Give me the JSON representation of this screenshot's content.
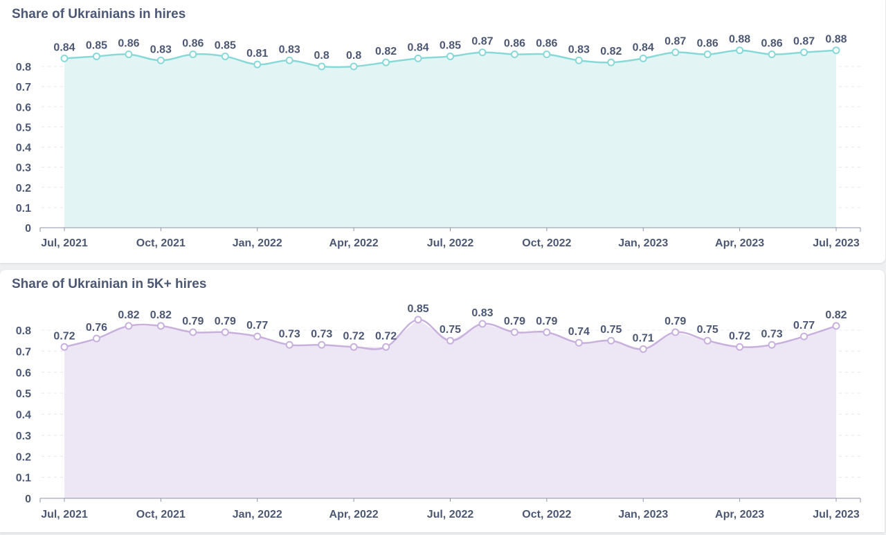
{
  "chart_data": [
    {
      "type": "area",
      "title": "Share of Ukrainians in hires",
      "xlabel": "",
      "ylabel": "",
      "ylim": [
        0,
        0.9
      ],
      "yticks": [
        "0",
        "0.1",
        "0.2",
        "0.3",
        "0.4",
        "0.5",
        "0.6",
        "0.7",
        "0.8"
      ],
      "x_ticks": [
        "Jul, 2021",
        "Oct, 2021",
        "Jan, 2022",
        "Apr, 2022",
        "Jul, 2022",
        "Oct, 2022",
        "Jan, 2023",
        "Apr, 2023",
        "Jul, 2023"
      ],
      "x": [
        "2021-07",
        "2021-08",
        "2021-09",
        "2021-10",
        "2021-11",
        "2021-12",
        "2022-01",
        "2022-02",
        "2022-03",
        "2022-04",
        "2022-05",
        "2022-06",
        "2022-07",
        "2022-08",
        "2022-09",
        "2022-10",
        "2022-11",
        "2022-12",
        "2023-01",
        "2023-02",
        "2023-03",
        "2023-04",
        "2023-05",
        "2023-06",
        "2023-07"
      ],
      "values": [
        0.84,
        0.85,
        0.86,
        0.83,
        0.86,
        0.85,
        0.81,
        0.83,
        0.8,
        0.8,
        0.82,
        0.84,
        0.85,
        0.87,
        0.86,
        0.86,
        0.83,
        0.82,
        0.84,
        0.87,
        0.86,
        0.88,
        0.86,
        0.87,
        0.88
      ],
      "labels": [
        "0.84",
        "0.85",
        "0.86",
        "0.83",
        "0.86",
        "0.85",
        "0.81",
        "0.83",
        "0.8",
        "0.8",
        "0.82",
        "0.84",
        "0.85",
        "0.87",
        "0.86",
        "0.86",
        "0.83",
        "0.82",
        "0.84",
        "0.87",
        "0.86",
        "0.88",
        "0.86",
        "0.87",
        "0.88"
      ],
      "grid": true,
      "colors": {
        "line": "#88d8d8",
        "fill": "#e2f5f4",
        "point_fill": "#ffffff"
      }
    },
    {
      "type": "area",
      "title": "Share of Ukrainian in 5K+ hires",
      "xlabel": "",
      "ylabel": "",
      "ylim": [
        0,
        0.9
      ],
      "yticks": [
        "0",
        "0.1",
        "0.2",
        "0.3",
        "0.4",
        "0.5",
        "0.6",
        "0.7",
        "0.8"
      ],
      "x_ticks": [
        "Jul, 2021",
        "Oct, 2021",
        "Jan, 2022",
        "Apr, 2022",
        "Jul, 2022",
        "Oct, 2022",
        "Jan, 2023",
        "Apr, 2023",
        "Jul, 2023"
      ],
      "x": [
        "2021-07",
        "2021-08",
        "2021-09",
        "2021-10",
        "2021-11",
        "2021-12",
        "2022-01",
        "2022-02",
        "2022-03",
        "2022-04",
        "2022-05",
        "2022-06",
        "2022-07",
        "2022-08",
        "2022-09",
        "2022-10",
        "2022-11",
        "2022-12",
        "2023-01",
        "2023-02",
        "2023-03",
        "2023-04",
        "2023-05",
        "2023-06",
        "2023-07"
      ],
      "values": [
        0.72,
        0.76,
        0.82,
        0.82,
        0.79,
        0.79,
        0.77,
        0.73,
        0.73,
        0.72,
        0.72,
        0.85,
        0.75,
        0.83,
        0.79,
        0.79,
        0.74,
        0.75,
        0.71,
        0.79,
        0.75,
        0.72,
        0.73,
        0.77,
        0.82
      ],
      "labels": [
        "0.72",
        "0.76",
        "0.82",
        "0.82",
        "0.79",
        "0.79",
        "0.77",
        "0.73",
        "0.73",
        "0.72",
        "0.72",
        "0.85",
        "0.75",
        "0.83",
        "0.79",
        "0.79",
        "0.74",
        "0.75",
        "0.71",
        "0.79",
        "0.75",
        "0.72",
        "0.73",
        "0.77",
        "0.82"
      ],
      "grid": true,
      "colors": {
        "line": "#c8b0dc",
        "fill": "#ede6f4",
        "point_fill": "#ffffff"
      }
    }
  ]
}
